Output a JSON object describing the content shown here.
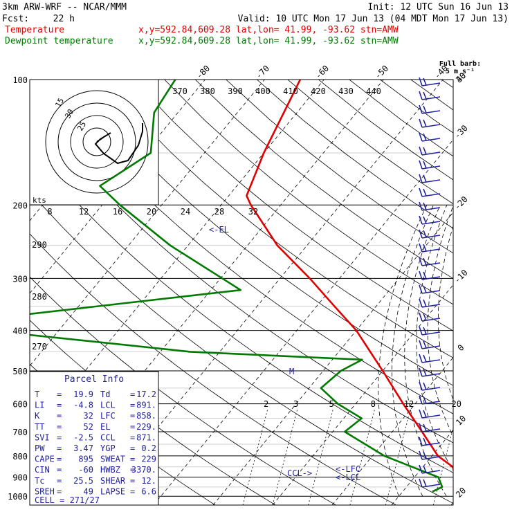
{
  "header": {
    "model": "3km ARW-WRF -- NCAR/MMM",
    "init": "Init: 12 UTC Sun 16 Jun 13",
    "fcst_label": "Fcst:",
    "fcst_value": "22 h",
    "valid": "Valid: 10 UTC Mon 17 Jun 13 (04 MDT Mon 17 Jun 13)",
    "series_label_temp": "Temperature",
    "series_label_dew": "Dewpoint temperature",
    "location_temp": "x,y=592.84,609.28   lat,lon= 41.99, -93.62  stn=AMW",
    "location_dew": "x,y=592.84,609.28   lat,lon= 41.99, -93.62  stn=AMW",
    "barb_legend_1": "Full barb:",
    "barb_legend_2": "5 m s⁻¹"
  },
  "colors": {
    "temperature": "#e00000",
    "dewpoint": "#007a00",
    "labels": "#2020a0",
    "barbs": "#2020a0"
  },
  "chart_data": {
    "type": "line",
    "title": "",
    "ylabel": "",
    "xlabel": "",
    "y_scale": "log",
    "pressure_ticks": [
      100,
      200,
      300,
      400,
      500,
      600,
      700,
      800,
      900,
      1000
    ],
    "temperature_ticks": [
      -80,
      -70,
      -60,
      -50,
      -40,
      -30,
      -20,
      -10,
      0,
      10,
      20,
      30,
      40
    ],
    "theta_e_labels": [
      370,
      380,
      390,
      400,
      410,
      420,
      430,
      440,
      290,
      280,
      270
    ],
    "mixing_ratio_labels": [
      2,
      3,
      5,
      8,
      12,
      20
    ],
    "series": [
      {
        "name": "Temperature",
        "points": [
          {
            "p": 100,
            "t": -64
          },
          {
            "p": 150,
            "t": -60
          },
          {
            "p": 190,
            "t": -57
          },
          {
            "p": 200,
            "t": -55
          },
          {
            "p": 250,
            "t": -45
          },
          {
            "p": 300,
            "t": -35
          },
          {
            "p": 350,
            "t": -27
          },
          {
            "p": 400,
            "t": -20
          },
          {
            "p": 500,
            "t": -10
          },
          {
            "p": 600,
            "t": -2
          },
          {
            "p": 700,
            "t": 5
          },
          {
            "p": 800,
            "t": 11
          },
          {
            "p": 850,
            "t": 15
          },
          {
            "p": 900,
            "t": 17
          },
          {
            "p": 950,
            "t": 19
          },
          {
            "p": 960,
            "t": 24
          },
          {
            "p": 980,
            "t": 20
          }
        ]
      },
      {
        "name": "Dewpoint temperature",
        "points": [
          {
            "p": 100,
            "t": -85
          },
          {
            "p": 120,
            "t": -84
          },
          {
            "p": 150,
            "t": -79
          },
          {
            "p": 180,
            "t": -83
          },
          {
            "p": 200,
            "t": -77
          },
          {
            "p": 250,
            "t": -63
          },
          {
            "p": 320,
            "t": -45
          },
          {
            "p": 385,
            "t": -90
          },
          {
            "p": 400,
            "t": -82
          },
          {
            "p": 450,
            "t": -45
          },
          {
            "p": 470,
            "t": -15
          },
          {
            "p": 500,
            "t": -17
          },
          {
            "p": 550,
            "t": -18
          },
          {
            "p": 600,
            "t": -13
          },
          {
            "p": 650,
            "t": -7
          },
          {
            "p": 700,
            "t": -8
          },
          {
            "p": 800,
            "t": 2
          },
          {
            "p": 900,
            "t": 14
          },
          {
            "p": 950,
            "t": 16
          },
          {
            "p": 975,
            "t": 15
          }
        ]
      }
    ],
    "levels": {
      "EL": "<-EL",
      "CCL": "CCL->",
      "LFC": "<-LFC",
      "LCL": "<-LCL",
      "M": "M"
    },
    "hodograph": {
      "unit_label": "kts",
      "ring_labels": [
        "15",
        "30",
        "25"
      ],
      "speed_axis": [
        8,
        12,
        16,
        20,
        24,
        28,
        32
      ]
    }
  },
  "parcel_info": {
    "title": "Parcel Info",
    "rows": [
      {
        "k1": "T",
        "v1": "19.9",
        "k2": "Td",
        "v2": "17.2"
      },
      {
        "k1": "LI",
        "v1": "-4.8",
        "k2": "LCL",
        "v2": "891."
      },
      {
        "k1": "K",
        "v1": "32",
        "k2": "LFC",
        "v2": "858."
      },
      {
        "k1": "TT",
        "v1": "52",
        "k2": "EL",
        "v2": "229."
      },
      {
        "k1": "SVI",
        "v1": "-2.5",
        "k2": "CCL",
        "v2": "871."
      },
      {
        "k1": "PW",
        "v1": "3.47",
        "k2": "YGP",
        "v2": "0.2"
      },
      {
        "k1": "CAPE",
        "v1": "895",
        "k2": "SWEAT",
        "v2": "229"
      },
      {
        "k1": "CIN",
        "v1": "-60",
        "k2": "HWBZ",
        "v2": "3370."
      },
      {
        "k1": "Tc",
        "v1": "25.5",
        "k2": "SHEAR",
        "v2": "12."
      },
      {
        "k1": "SREH",
        "v1": "49",
        "k2": "LAPSE",
        "v2": "6.6"
      }
    ],
    "cell": "CELL = 271/27"
  }
}
